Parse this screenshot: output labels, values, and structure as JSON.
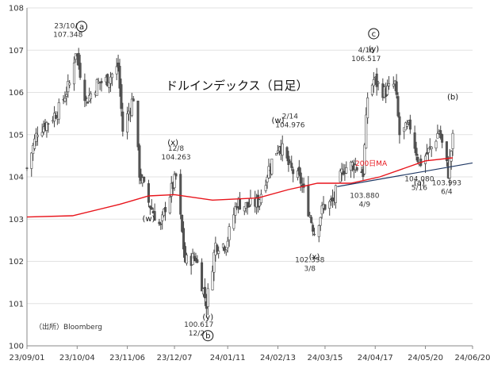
{
  "chart_data": {
    "type": "candlestick",
    "title": "ドルインデックス（日足）",
    "source": "（出所）Bloomberg",
    "ylim": [
      100,
      108
    ],
    "y_ticks": [
      "100",
      "101",
      "102",
      "103",
      "104",
      "105",
      "106",
      "107",
      "108"
    ],
    "x_start": "2023-09-01",
    "x_end": "2024-06-20",
    "x_ticks": [
      {
        "label": "23/09/01",
        "date": "2023-09-01"
      },
      {
        "label": "23/10/04",
        "date": "2023-10-04"
      },
      {
        "label": "23/11/06",
        "date": "2023-11-06"
      },
      {
        "label": "23/12/07",
        "date": "2023-12-07"
      },
      {
        "label": "24/01/11",
        "date": "2024-01-11"
      },
      {
        "label": "24/02/13",
        "date": "2024-02-13"
      },
      {
        "label": "24/03/15",
        "date": "2024-03-15"
      },
      {
        "label": "24/04/17",
        "date": "2024-04-17"
      },
      {
        "label": "24/05/20",
        "date": "2024-05-20"
      },
      {
        "label": "24/06/20",
        "date": "2024-06-20"
      }
    ],
    "price_path": [
      {
        "date": "2023-09-01",
        "close": 104.2
      },
      {
        "date": "2023-09-08",
        "close": 105.1
      },
      {
        "date": "2023-09-15",
        "close": 105.3
      },
      {
        "date": "2023-09-22",
        "close": 105.6
      },
      {
        "date": "2023-09-29",
        "close": 106.2
      },
      {
        "date": "2023-10-03",
        "close": 107.0
      },
      {
        "date": "2023-10-10",
        "close": 105.8
      },
      {
        "date": "2023-10-17",
        "close": 106.2
      },
      {
        "date": "2023-10-24",
        "close": 106.3
      },
      {
        "date": "2023-10-31",
        "close": 106.6
      },
      {
        "date": "2023-11-03",
        "close": 105.1
      },
      {
        "date": "2023-11-10",
        "close": 105.9
      },
      {
        "date": "2023-11-14",
        "close": 104.1
      },
      {
        "date": "2023-11-20",
        "close": 103.4
      },
      {
        "date": "2023-11-28",
        "close": 102.8
      },
      {
        "date": "2023-12-01",
        "close": 103.3
      },
      {
        "date": "2023-12-08",
        "close": 104.0
      },
      {
        "date": "2023-12-14",
        "close": 102.0
      },
      {
        "date": "2023-12-21",
        "close": 102.1
      },
      {
        "date": "2023-12-28",
        "close": 101.0
      },
      {
        "date": "2024-01-03",
        "close": 102.4
      },
      {
        "date": "2024-01-10",
        "close": 102.4
      },
      {
        "date": "2024-01-17",
        "close": 103.4
      },
      {
        "date": "2024-01-24",
        "close": 103.3
      },
      {
        "date": "2024-01-31",
        "close": 103.4
      },
      {
        "date": "2024-02-07",
        "close": 104.2
      },
      {
        "date": "2024-02-14",
        "close": 104.8
      },
      {
        "date": "2024-02-21",
        "close": 104.2
      },
      {
        "date": "2024-02-28",
        "close": 103.9
      },
      {
        "date": "2024-03-08",
        "close": 102.7
      },
      {
        "date": "2024-03-14",
        "close": 103.3
      },
      {
        "date": "2024-03-20",
        "close": 103.4
      },
      {
        "date": "2024-03-27",
        "close": 104.2
      },
      {
        "date": "2024-04-03",
        "close": 104.3
      },
      {
        "date": "2024-04-09",
        "close": 104.1
      },
      {
        "date": "2024-04-12",
        "close": 105.9
      },
      {
        "date": "2024-04-16",
        "close": 106.3
      },
      {
        "date": "2024-04-23",
        "close": 106.0
      },
      {
        "date": "2024-04-30",
        "close": 106.2
      },
      {
        "date": "2024-05-03",
        "close": 105.0
      },
      {
        "date": "2024-05-10",
        "close": 105.2
      },
      {
        "date": "2024-05-16",
        "close": 104.3
      },
      {
        "date": "2024-05-24",
        "close": 104.7
      },
      {
        "date": "2024-05-29",
        "close": 105.1
      },
      {
        "date": "2024-06-04",
        "close": 104.1
      },
      {
        "date": "2024-06-07",
        "close": 104.9
      }
    ],
    "ma200": {
      "label": "200日MA",
      "color": "#e8141b",
      "points": [
        {
          "date": "2023-09-01",
          "value": 103.05
        },
        {
          "date": "2023-10-01",
          "value": 103.08
        },
        {
          "date": "2023-11-01",
          "value": 103.35
        },
        {
          "date": "2023-11-20",
          "value": 103.55
        },
        {
          "date": "2023-12-07",
          "value": 103.58
        },
        {
          "date": "2024-01-01",
          "value": 103.45
        },
        {
          "date": "2024-01-31",
          "value": 103.5
        },
        {
          "date": "2024-02-20",
          "value": 103.7
        },
        {
          "date": "2024-03-10",
          "value": 103.85
        },
        {
          "date": "2024-04-01",
          "value": 103.85
        },
        {
          "date": "2024-04-20",
          "value": 104.0
        },
        {
          "date": "2024-05-20",
          "value": 104.38
        },
        {
          "date": "2024-06-07",
          "value": 104.45
        }
      ]
    },
    "trendline": {
      "color": "#1f3864",
      "from": {
        "date": "2024-03-23",
        "value": 103.77
      },
      "to": {
        "date": "2024-06-20",
        "value": 104.33
      }
    },
    "annotations": [
      {
        "id": "a-label",
        "kind": "text",
        "lines": [
          "23/10/3",
          "107.348"
        ],
        "date": "2023-09-28",
        "value": 107.52
      },
      {
        "id": "w1-label",
        "kind": "text",
        "lines": [
          "12/8",
          "104.263"
        ],
        "date": "2023-12-08",
        "value": 104.62
      },
      {
        "id": "b-label",
        "kind": "text",
        "lines": [
          "100.617",
          "12/28"
        ],
        "date": "2023-12-23",
        "value": 100.45
      },
      {
        "id": "w2-label",
        "kind": "text",
        "lines": [
          "2/14",
          "104.976"
        ],
        "date": "2024-02-21",
        "value": 105.38
      },
      {
        "id": "x2-label",
        "kind": "text",
        "lines": [
          "102.358",
          "3/8"
        ],
        "date": "2024-03-05",
        "value": 101.98
      },
      {
        "id": "c-label",
        "kind": "text",
        "lines": [
          "4/16",
          "106.517"
        ],
        "date": "2024-04-11",
        "value": 106.95
      },
      {
        "id": "y2low-label",
        "kind": "text",
        "lines": [
          "103.880",
          "4/9"
        ],
        "date": "2024-04-10",
        "value": 103.5
      },
      {
        "id": "a2-label",
        "kind": "text",
        "lines": [
          "104.080",
          "5/16"
        ],
        "date": "2024-05-16",
        "value": 103.9
      },
      {
        "id": "jun4-label",
        "kind": "text",
        "lines": [
          "103.993",
          "6/4"
        ],
        "date": "2024-06-03",
        "value": 103.8
      },
      {
        "id": "wave-a-circle",
        "kind": "circle",
        "text": "a",
        "date": "2023-10-07",
        "value": 107.56
      },
      {
        "id": "wave-b-circle",
        "kind": "circle",
        "text": "b",
        "date": "2023-12-29",
        "value": 100.24
      },
      {
        "id": "wave-c-circle",
        "kind": "circle",
        "text": "c",
        "date": "2024-04-16",
        "value": 107.39
      },
      {
        "id": "wave-w1",
        "kind": "paren",
        "text": "w",
        "date": "2023-11-20",
        "value": 102.95
      },
      {
        "id": "wave-x1",
        "kind": "paren",
        "text": "x",
        "date": "2023-12-06",
        "value": 104.75
      },
      {
        "id": "wave-y1",
        "kind": "paren",
        "text": "y",
        "date": "2023-12-29",
        "value": 100.62
      },
      {
        "id": "wave-w2",
        "kind": "paren",
        "text": "w",
        "date": "2024-02-13",
        "value": 105.28
      },
      {
        "id": "wave-x2",
        "kind": "paren",
        "text": "x",
        "date": "2024-03-08",
        "value": 102.05
      },
      {
        "id": "wave-y2",
        "kind": "paren",
        "text": "y",
        "date": "2024-04-16",
        "value": 106.97
      },
      {
        "id": "wave-a2",
        "kind": "paren",
        "text": "a",
        "date": "2024-05-16",
        "value": 103.8
      },
      {
        "id": "wave-b2",
        "kind": "paren",
        "text": "b",
        "date": "2024-06-07",
        "value": 105.83
      }
    ]
  }
}
